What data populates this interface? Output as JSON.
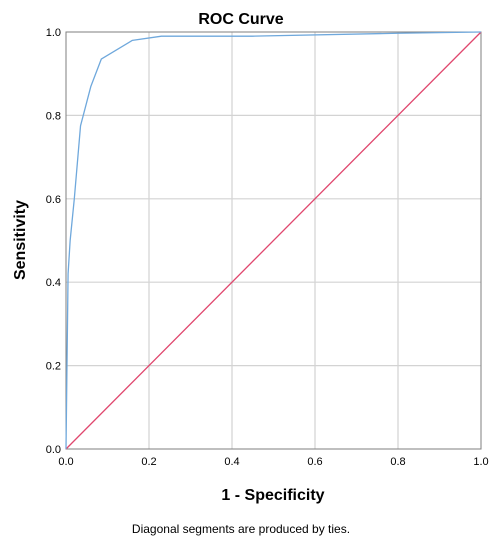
{
  "chart_data": {
    "type": "line",
    "title": "ROC Curve",
    "xlabel": "1 - Specificity",
    "ylabel": "Sensitivity",
    "xlim": [
      0,
      1
    ],
    "ylim": [
      0,
      1
    ],
    "xticks": [
      "0.0",
      "0.2",
      "0.4",
      "0.6",
      "0.8",
      "1.0"
    ],
    "yticks": [
      "0.0",
      "0.2",
      "0.4",
      "0.6",
      "0.8",
      "1.0"
    ],
    "grid": true,
    "series": [
      {
        "color": "#6fa8dc",
        "x": [
          0,
          0.005,
          0.01,
          0.02,
          0.035,
          0.06,
          0.085,
          0.16,
          0.23,
          0.45,
          0.8,
          1.0
        ],
        "y": [
          0,
          0.42,
          0.5,
          0.6,
          0.775,
          0.87,
          0.935,
          0.98,
          0.99,
          0.99,
          0.997,
          1.0
        ]
      },
      {
        "color": "#e0476e",
        "x": [
          0,
          1
        ],
        "y": [
          0,
          1
        ]
      }
    ],
    "footnote": "Diagonal segments are produced by ties."
  }
}
